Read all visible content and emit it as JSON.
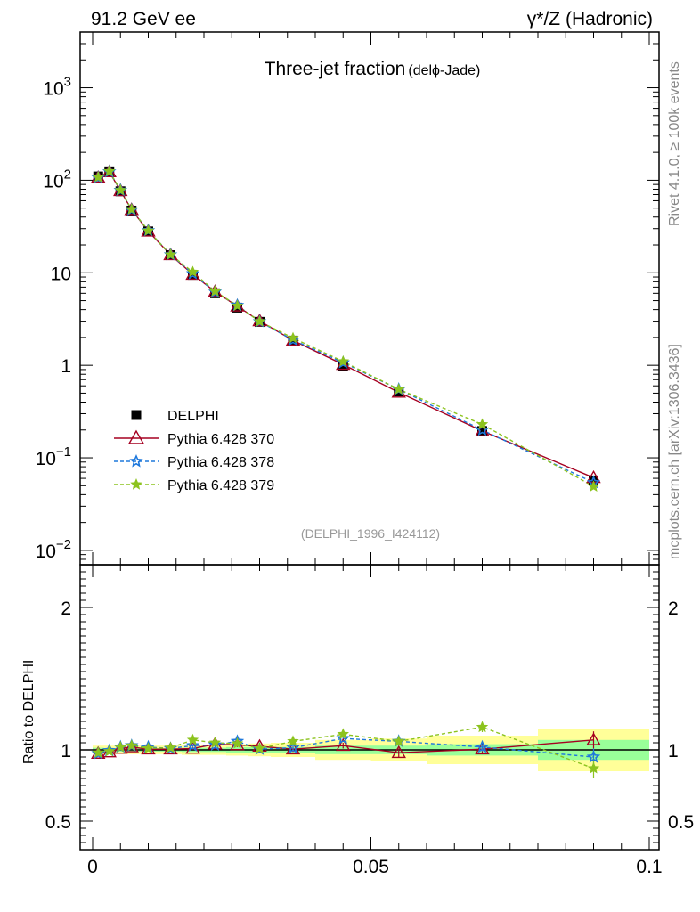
{
  "header": {
    "left": "91.2 GeV ee",
    "right": "γ*/Z (Hadronic)"
  },
  "side_labels": {
    "rivet": "Rivet 4.1.0, ≥ 100k events",
    "mcplots": "mcplots.cern.ch [arXiv:1306.3436]"
  },
  "colors": {
    "data": "#000000",
    "p370": "#a50021",
    "p378": "#1e78dc",
    "p379": "#8cc31e",
    "band_yellow": "#ffff99",
    "band_green": "#99ff99"
  },
  "chart_data": {
    "type": "line",
    "title": "Three-jet fraction",
    "subtitle": "(delϕ-Jade)",
    "watermark": "(DELPHI_1996_I424112)",
    "xlim": [
      0,
      0.1
    ],
    "ylim_main": [
      0.007,
      4000
    ],
    "y_scale": "log",
    "x_ticks": [
      {
        "v": 0,
        "label": "0"
      },
      {
        "v": 0.05,
        "label": "0.05"
      },
      {
        "v": 0.1,
        "label": "0.1"
      }
    ],
    "y_ticks_main": [
      {
        "v": 0.01,
        "base": "10",
        "exp": "−2"
      },
      {
        "v": 0.1,
        "base": "10",
        "exp": "−1"
      },
      {
        "v": 1,
        "base": "1",
        "exp": ""
      },
      {
        "v": 10,
        "base": "10",
        "exp": ""
      },
      {
        "v": 100,
        "base": "10",
        "exp": "2"
      },
      {
        "v": 1000,
        "base": "10",
        "exp": "3"
      }
    ],
    "ratio": {
      "ylabel": "Ratio to DELPHI",
      "ylim": [
        0.3,
        2.3
      ],
      "ticks": [
        {
          "v": 0.5,
          "label": "0.5"
        },
        {
          "v": 1,
          "label": "1"
        },
        {
          "v": 2,
          "label": "2"
        }
      ]
    },
    "x": [
      0.001,
      0.003,
      0.005,
      0.007,
      0.01,
      0.014,
      0.018,
      0.022,
      0.026,
      0.03,
      0.036,
      0.045,
      0.055,
      0.07,
      0.09
    ],
    "bins": [
      [
        0,
        0.002
      ],
      [
        0.002,
        0.004
      ],
      [
        0.004,
        0.006
      ],
      [
        0.006,
        0.008
      ],
      [
        0.008,
        0.012
      ],
      [
        0.012,
        0.016
      ],
      [
        0.016,
        0.02
      ],
      [
        0.02,
        0.024
      ],
      [
        0.024,
        0.028
      ],
      [
        0.028,
        0.032
      ],
      [
        0.032,
        0.04
      ],
      [
        0.04,
        0.05
      ],
      [
        0.05,
        0.06
      ],
      [
        0.06,
        0.08
      ],
      [
        0.08,
        0.1
      ]
    ],
    "data_band_inner": [
      0.015,
      0.012,
      0.012,
      0.012,
      0.012,
      0.012,
      0.015,
      0.015,
      0.02,
      0.02,
      0.02,
      0.03,
      0.03,
      0.04,
      0.07
    ],
    "data_band_outer": [
      0.03,
      0.03,
      0.03,
      0.03,
      0.03,
      0.03,
      0.035,
      0.035,
      0.04,
      0.045,
      0.05,
      0.07,
      0.08,
      0.1,
      0.15
    ],
    "legend": [
      {
        "name": "DELPHI",
        "key": "data"
      },
      {
        "name": "Pythia 6.428 370",
        "key": "p370"
      },
      {
        "name": "Pythia 6.428 378",
        "key": "p378"
      },
      {
        "name": "Pythia 6.428 379",
        "key": "p379"
      }
    ],
    "series": [
      {
        "name": "DELPHI",
        "key": "data",
        "values": [
          110,
          125,
          76,
          47,
          28,
          15.5,
          9.5,
          6.0,
          4.2,
          2.95,
          1.85,
          0.99,
          0.52,
          0.195,
          0.057
        ]
      },
      {
        "name": "Pythia 6.428 370",
        "key": "p370",
        "values": [
          107,
          123,
          77,
          48,
          28.1,
          15.6,
          9.6,
          6.25,
          4.35,
          3.02,
          1.86,
          1.02,
          0.51,
          0.195,
          0.061
        ]
      },
      {
        "name": "Pythia 6.428 378",
        "key": "p378",
        "values": [
          107,
          124,
          78,
          48,
          28.6,
          15.7,
          9.8,
          6.2,
          4.45,
          2.97,
          1.88,
          1.07,
          0.55,
          0.2,
          0.054
        ]
      },
      {
        "name": "Pythia 6.428 379",
        "key": "p379",
        "values": [
          108,
          125,
          78,
          48.5,
          28.5,
          15.7,
          10.2,
          6.3,
          4.4,
          2.98,
          1.97,
          1.1,
          0.55,
          0.23,
          0.049
        ]
      }
    ],
    "ratios": {
      "p370": [
        0.975,
        0.985,
        1.01,
        1.02,
        1.005,
        1.005,
        1.01,
        1.04,
        1.035,
        1.025,
        1.005,
        1.03,
        0.98,
        1.005,
        1.07
      ],
      "p378": [
        0.975,
        0.995,
        1.02,
        1.03,
        1.02,
        1.01,
        1.03,
        1.035,
        1.06,
        1.005,
        1.015,
        1.08,
        1.06,
        1.02,
        0.95
      ],
      "p379": [
        0.98,
        0.99,
        1.02,
        1.03,
        1.01,
        1.015,
        1.07,
        1.05,
        1.045,
        1.01,
        1.06,
        1.11,
        1.06,
        1.16,
        0.87
      ]
    },
    "ratio_errors": {
      "p370": [
        0.01,
        0.01,
        0.01,
        0.01,
        0.01,
        0.01,
        0.01,
        0.015,
        0.015,
        0.015,
        0.02,
        0.02,
        0.03,
        0.03,
        0.06
      ],
      "p378": [
        0.01,
        0.01,
        0.01,
        0.01,
        0.01,
        0.01,
        0.01,
        0.015,
        0.015,
        0.015,
        0.02,
        0.02,
        0.03,
        0.03,
        0.06
      ],
      "p379": [
        0.01,
        0.01,
        0.01,
        0.01,
        0.01,
        0.01,
        0.015,
        0.015,
        0.015,
        0.015,
        0.02,
        0.025,
        0.03,
        0.035,
        0.07
      ]
    }
  }
}
